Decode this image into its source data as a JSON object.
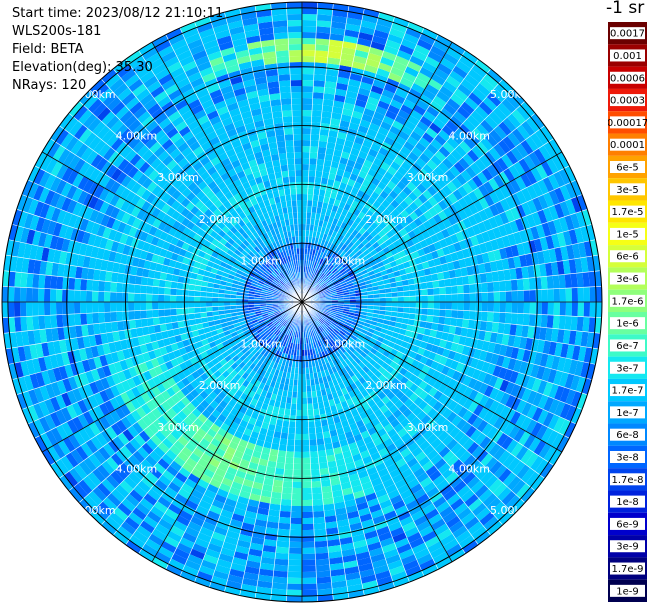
{
  "info": {
    "start_time": "Start time: 2023/08/12 21:10:11",
    "instrument": "WLS200s-181",
    "field": "Field: BETA",
    "elevation": "Elevation(deg): 35.30",
    "nrays": "NRays: 120"
  },
  "colorbar": {
    "title": "-1 sr",
    "labels": [
      "0.0017",
      "0.001",
      "0.0006",
      "0.0003",
      "0.00017",
      "0.0001",
      "6e-5",
      "3e-5",
      "1.7e-5",
      "1e-5",
      "6e-6",
      "3e-6",
      "1.7e-6",
      "1e-6",
      "6e-7",
      "3e-7",
      "1.7e-7",
      "1e-7",
      "6e-8",
      "3e-8",
      "1.7e-8",
      "1e-8",
      "6e-9",
      "3e-9",
      "1.7e-9",
      "1e-9"
    ],
    "colors": [
      "#6a0000",
      "#9a0000",
      "#c80000",
      "#ee1a0a",
      "#ff4d00",
      "#ff7f00",
      "#ffa200",
      "#ffc600",
      "#ffe600",
      "#f6ff16",
      "#d5ff3a",
      "#b3ff5a",
      "#8fff7c",
      "#68ffa0",
      "#3dfac8",
      "#14e8f0",
      "#00c8ff",
      "#00a8ff",
      "#0088ff",
      "#0066ff",
      "#0044ee",
      "#0022dd",
      "#0000cc",
      "#0000a8",
      "#00007f",
      "#000050"
    ]
  },
  "chart_data": {
    "type": "heatmap",
    "projection": "polar PPI (lidar scan)",
    "field": "BETA",
    "units": "-1 sr",
    "nrays": 120,
    "elevation_deg": 35.3,
    "range_rings_km": [
      1.0,
      2.0,
      3.0,
      4.0,
      5.0
    ],
    "ring_labels": [
      "1.00km",
      "2.00km",
      "3.00km",
      "4.00km",
      "5.00km"
    ],
    "color_scale": "log",
    "value_min": 1e-09,
    "value_max": 0.0017,
    "features": [
      {
        "region": "near range (<1 km)",
        "dominant_level": "1.7e-8"
      },
      {
        "region": "1–2 km",
        "dominant_level": "1e-7"
      },
      {
        "region": "arc ~2.8–3.4 km south / south-west",
        "dominant_level": "1e-6"
      },
      {
        "region": "arc ~4.3 km north",
        "dominant_level": "1e-5"
      },
      {
        "region": "outer range 4–5 km",
        "dominant_level": "3e-8"
      }
    ]
  }
}
